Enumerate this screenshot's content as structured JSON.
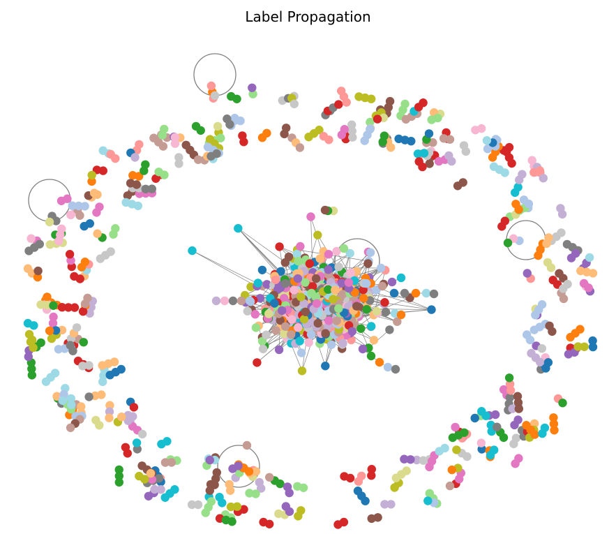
{
  "figure": {
    "title": "Label Propagation"
  },
  "palette": [
    "#1f77b4",
    "#aec7e8",
    "#ff7f0e",
    "#ffbb78",
    "#2ca02c",
    "#98df8a",
    "#d62728",
    "#ff9896",
    "#9467bd",
    "#c5b0d5",
    "#8c564b",
    "#c49c94",
    "#e377c2",
    "#f7b6d2",
    "#7f7f7f",
    "#c7c7c7",
    "#bcbd22",
    "#dbdb8d",
    "#17becf",
    "#9edae5"
  ],
  "edge_color": "#808080",
  "node_shape": "circle",
  "layout_style": "dense central cluster surrounded by a ring of small disconnected components",
  "legend": "none",
  "axes": "hidden"
}
